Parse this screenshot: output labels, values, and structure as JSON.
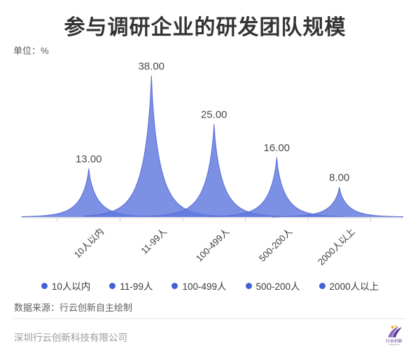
{
  "header": {
    "title": "参与调研企业的研发团队规模",
    "unit_label": "单位：%"
  },
  "chart_data": {
    "type": "area",
    "style": "sharp-peak spike area, one peak per category",
    "categories": [
      "10人以内",
      "11-99人",
      "100-499人",
      "500-200人",
      "2000人以上"
    ],
    "values": [
      13,
      38,
      25,
      16,
      8
    ],
    "value_labels": [
      "13.00",
      "38.00",
      "25.00",
      "16.00",
      "8.00"
    ],
    "unit": "%",
    "ylim": [
      0,
      40
    ],
    "grid": false,
    "xlabel": "",
    "ylabel": "",
    "legend_position": "bottom",
    "legend_items": [
      "10人以内",
      "11-99人",
      "100-499人",
      "500-200人",
      "2000人以上"
    ],
    "colors": {
      "area_fill": "#5F78DE",
      "area_fill_opacity": 0.82,
      "area_stroke": "#5569D6",
      "legend_dot": "#4161D8",
      "axis_line": "#c9c9c9",
      "value_label": "#4a4a4a"
    }
  },
  "source_note": "数据来源：行云创新自主绘制",
  "footer": {
    "company": "深圳行云创新科技有限公司",
    "logo": {
      "name": "行云创新",
      "mark": "purple-swoosh-with-yellow-dots",
      "colors": {
        "swoosh_light": "#8A6FBF",
        "swoosh_dark": "#5B3F96",
        "dot": "#F5B91E"
      }
    }
  }
}
